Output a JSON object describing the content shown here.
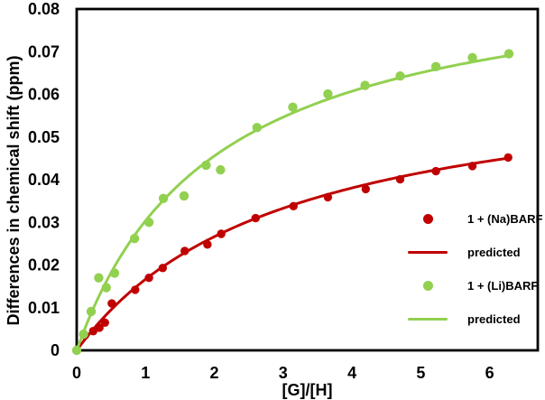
{
  "figure": {
    "background": "#ffffff",
    "axis_color": "#000000",
    "text_color": "#000000"
  },
  "chart_data": {
    "type": "scatter",
    "title": "",
    "xlabel": "[G]/[H]",
    "ylabel": "Differences in chemical shift (ppm)",
    "xlim": [
      0,
      6.7
    ],
    "ylim": [
      0,
      0.08
    ],
    "grid": false,
    "legend_position": "inside-lower-right",
    "x_ticks": [
      {
        "value": 0,
        "label": "0"
      },
      {
        "value": 1,
        "label": "1"
      },
      {
        "value": 2,
        "label": "2"
      },
      {
        "value": 3,
        "label": "3"
      },
      {
        "value": 4,
        "label": "4"
      },
      {
        "value": 5,
        "label": "5"
      },
      {
        "value": 6,
        "label": "6"
      }
    ],
    "y_ticks": [
      {
        "value": 0,
        "label": "0"
      },
      {
        "value": 0.01,
        "label": "0.01"
      },
      {
        "value": 0.02,
        "label": "0.02"
      },
      {
        "value": 0.03,
        "label": "0.03"
      },
      {
        "value": 0.04,
        "label": "0.04"
      },
      {
        "value": 0.05,
        "label": "0.05"
      },
      {
        "value": 0.06,
        "label": "0.06"
      },
      {
        "value": 0.07,
        "label": "0.07"
      },
      {
        "value": 0.08,
        "label": "0.08"
      }
    ],
    "series": [
      {
        "name": "1 + (Na)BARF",
        "kind": "scatter",
        "marker": "circle",
        "color": "#c00000",
        "marker_radius": 4.7,
        "x": [
          0,
          0.12,
          0.24,
          0.33,
          0.41,
          0.51,
          0.85,
          1.05,
          1.25,
          1.57,
          1.9,
          2.1,
          2.6,
          3.15,
          3.65,
          4.2,
          4.7,
          5.22,
          5.75,
          6.27
        ],
        "y": [
          0,
          0.0035,
          0.0045,
          0.0053,
          0.0065,
          0.011,
          0.0142,
          0.017,
          0.0193,
          0.0233,
          0.0248,
          0.0273,
          0.031,
          0.0338,
          0.0359,
          0.0378,
          0.0401,
          0.042,
          0.0432,
          0.0452
        ]
      },
      {
        "name": "predicted",
        "kind": "line",
        "color": "#c00000",
        "line_width": 3,
        "fit": {
          "model": "y = vmax*x/(k+x)",
          "vmax": 0.0666,
          "k": 3.0,
          "x_min": 0,
          "x_max": 6.3
        }
      },
      {
        "name": "1 + (Li)BARF",
        "kind": "scatter",
        "marker": "circle",
        "color": "#92d050",
        "marker_radius": 5.2,
        "x": [
          0,
          0.1,
          0.21,
          0.32,
          0.43,
          0.55,
          0.84,
          1.05,
          1.26,
          1.56,
          1.88,
          2.09,
          2.62,
          3.14,
          3.65,
          4.19,
          4.7,
          5.22,
          5.75,
          6.28
        ],
        "y": [
          0,
          0.0038,
          0.0091,
          0.017,
          0.0147,
          0.0181,
          0.0262,
          0.03,
          0.0356,
          0.0362,
          0.0434,
          0.0423,
          0.0522,
          0.057,
          0.0601,
          0.0621,
          0.0643,
          0.0665,
          0.0686,
          0.0695
        ]
      },
      {
        "name": "predicted",
        "kind": "line",
        "color": "#92d050",
        "line_width": 3,
        "fit": {
          "model": "y = vmax*x/(k+x)",
          "vmax": 0.0911,
          "k": 2.0,
          "x_min": 0,
          "x_max": 6.3
        }
      }
    ]
  },
  "legend": {
    "items": [
      {
        "label": "1 + (Na)BARF",
        "marker": "dot",
        "color": "#c00000"
      },
      {
        "label": "predicted",
        "marker": "line",
        "color": "#c00000"
      },
      {
        "label": "1 + (Li)BARF",
        "marker": "dot",
        "color": "#92d050"
      },
      {
        "label": "predicted",
        "marker": "line",
        "color": "#92d050"
      }
    ]
  }
}
